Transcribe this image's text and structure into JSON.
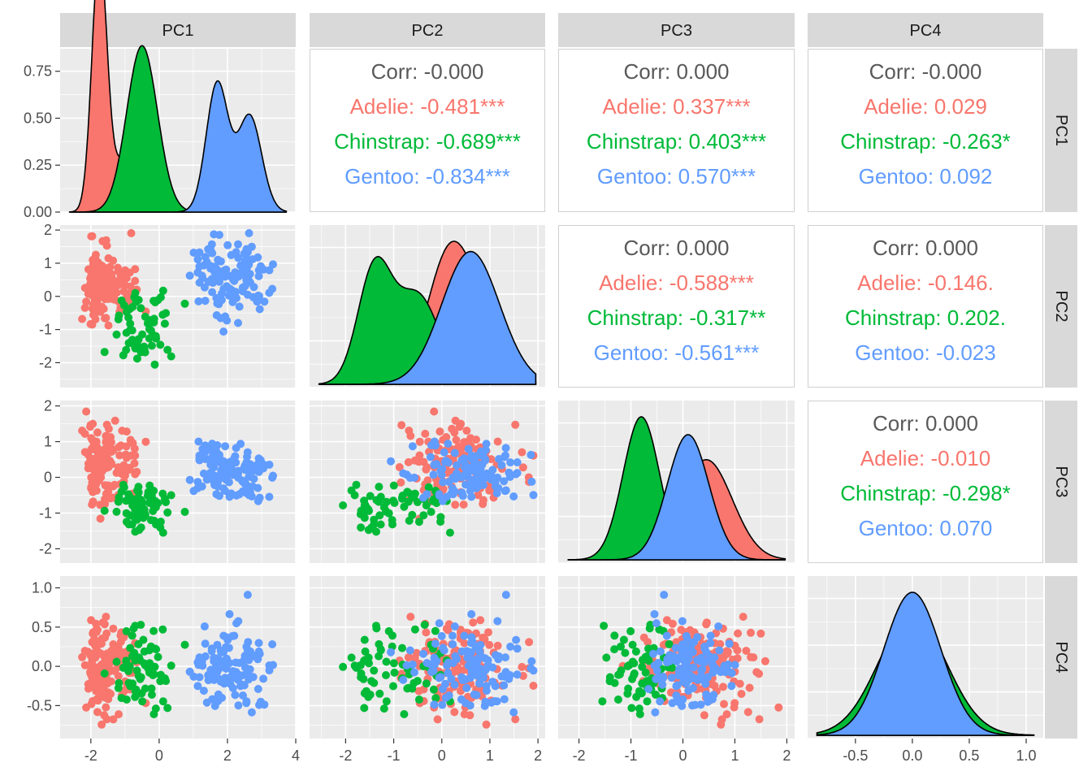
{
  "variables": [
    "PC1",
    "PC2",
    "PC3",
    "PC4"
  ],
  "species": [
    "Adelie",
    "Chinstrap",
    "Gentoo"
  ],
  "colors": {
    "Adelie": "#F8766D",
    "Chinstrap": "#00BA38",
    "Gentoo": "#619CFF",
    "panel_bg": "#EBEBEB",
    "grid": "#FFFFFF",
    "strip_bg": "#D9D9D9",
    "corr_text": "#595959",
    "axis_text": "#4D4D4D"
  },
  "chart_data": {
    "type": "scatter",
    "subtype": "pairs-matrix",
    "grid": true,
    "ranges": {
      "PC1": [
        -2.9,
        4.0
      ],
      "PC2": [
        -2.75,
        2.15
      ],
      "PC3": [
        -2.4,
        2.15
      ],
      "PC4": [
        -0.92,
        1.15
      ]
    },
    "ticks": {
      "PC1": [
        -2,
        0,
        2,
        4
      ],
      "PC2": [
        -2,
        -1,
        0,
        1,
        2
      ],
      "PC3": [
        -2,
        -1,
        0,
        1,
        2
      ],
      "PC4": [
        -0.5,
        0.0,
        0.5,
        1.0
      ]
    },
    "tick_labels": {
      "PC1": [
        "-2",
        "0",
        "2",
        "4"
      ],
      "PC2": [
        "-2",
        "-1",
        "0",
        "1",
        "2"
      ],
      "PC3": [
        "-2",
        "-1",
        "0",
        "1",
        "2"
      ],
      "PC4": [
        "-0.5",
        "0.0",
        "0.5",
        "1.0"
      ]
    },
    "density_axis": {
      "range": [
        0,
        0.87
      ],
      "ticks": [
        0.0,
        0.25,
        0.5,
        0.75
      ],
      "tick_labels": [
        "0.00",
        "0.25",
        "0.50",
        "0.75"
      ]
    },
    "correlations": [
      {
        "row": "PC1",
        "col": "PC2",
        "overall": "Corr: -0.000",
        "Adelie": "Adelie: -0.481***",
        "Chinstrap": "Chinstrap: -0.689***",
        "Gentoo": "Gentoo: -0.834***"
      },
      {
        "row": "PC1",
        "col": "PC3",
        "overall": "Corr: 0.000",
        "Adelie": "Adelie: 0.337***",
        "Chinstrap": "Chinstrap: 0.403***",
        "Gentoo": "Gentoo: 0.570***"
      },
      {
        "row": "PC1",
        "col": "PC4",
        "overall": "Corr: -0.000",
        "Adelie": "Adelie: 0.029",
        "Chinstrap": "Chinstrap: -0.263*",
        "Gentoo": "Gentoo: 0.092"
      },
      {
        "row": "PC2",
        "col": "PC3",
        "overall": "Corr: 0.000",
        "Adelie": "Adelie: -0.588***",
        "Chinstrap": "Chinstrap: -0.317**",
        "Gentoo": "Gentoo: -0.561***"
      },
      {
        "row": "PC2",
        "col": "PC4",
        "overall": "Corr: 0.000",
        "Adelie": "Adelie: -0.146.",
        "Chinstrap": "Chinstrap: 0.202.",
        "Gentoo": "Gentoo: -0.023"
      },
      {
        "row": "PC3",
        "col": "PC4",
        "overall": "Corr: 0.000",
        "Adelie": "Adelie: -0.010",
        "Chinstrap": "Chinstrap: -0.298*",
        "Gentoo": "Gentoo: 0.070"
      }
    ],
    "group_distributions": {
      "Adelie": {
        "n": 146,
        "PC1": {
          "components": [
            [
              0.75,
              -1.75,
              0.22
            ],
            [
              0.25,
              -1.0,
              0.35
            ]
          ]
        },
        "PC2": {
          "components": [
            [
              0.6,
              0.1,
              0.45
            ],
            [
              0.4,
              0.7,
              0.5
            ]
          ]
        },
        "PC3": {
          "components": [
            [
              1.0,
              0.45,
              0.5
            ]
          ]
        },
        "PC4": {
          "components": [
            [
              1.0,
              0.0,
              0.3
            ]
          ]
        }
      },
      "Chinstrap": {
        "n": 68,
        "PC1": {
          "components": [
            [
              1.0,
              -0.5,
              0.45
            ]
          ]
        },
        "PC2": {
          "components": [
            [
              0.5,
              -1.4,
              0.35
            ],
            [
              0.5,
              -0.5,
              0.45
            ]
          ]
        },
        "PC3": {
          "components": [
            [
              1.0,
              -0.8,
              0.35
            ]
          ]
        },
        "PC4": {
          "components": [
            [
              1.0,
              0.0,
              0.3
            ]
          ]
        }
      },
      "Gentoo": {
        "n": 119,
        "PC1": {
          "components": [
            [
              0.55,
              1.7,
              0.32
            ],
            [
              0.45,
              2.65,
              0.35
            ]
          ]
        },
        "PC2": {
          "components": [
            [
              1.0,
              0.6,
              0.6
            ]
          ]
        },
        "PC3": {
          "components": [
            [
              1.0,
              0.1,
              0.4
            ]
          ]
        },
        "PC4": {
          "components": [
            [
              1.0,
              0.0,
              0.25
            ]
          ]
        }
      }
    }
  }
}
